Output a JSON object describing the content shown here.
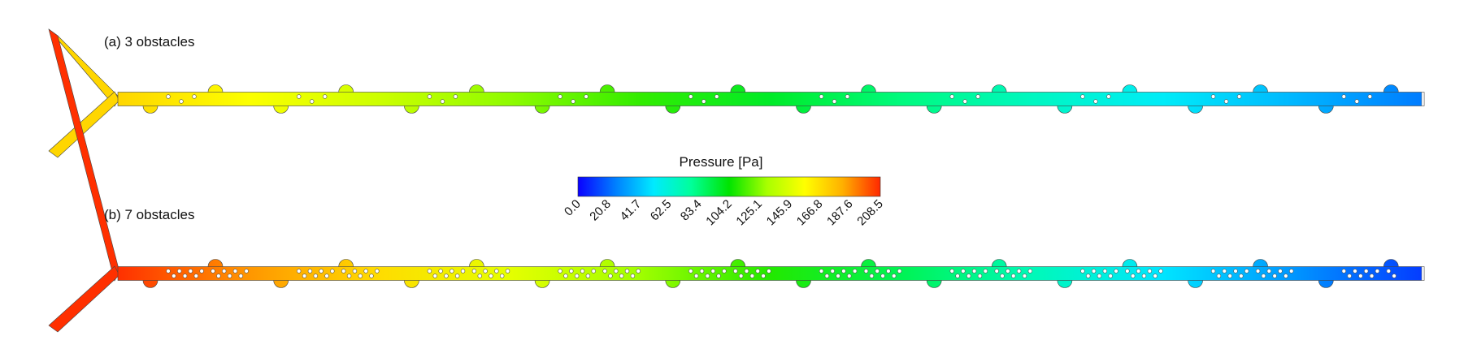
{
  "panels": [
    {
      "id": "a",
      "label": "(a) 3 obstacles",
      "obstacles_per_section": 3,
      "inlet_pressure": 170,
      "section_pressure_drop": 14.5
    },
    {
      "id": "b",
      "label": "(b) 7 obstacles",
      "obstacles_per_section": 7,
      "inlet_pressure": 207,
      "section_pressure_drop": 19.5
    }
  ],
  "legend": {
    "title": "Pressure [Pa]",
    "min": 0.0,
    "max": 208.5,
    "ticks": [
      "0.0",
      "20.8",
      "41.7",
      "62.5",
      "83.4",
      "104.2",
      "125.1",
      "145.9",
      "166.8",
      "187.6",
      "208.5"
    ]
  },
  "colormap": [
    "#0a00ff",
    "#0080ff",
    "#00eaff",
    "#00ff9a",
    "#00e400",
    "#a8ff00",
    "#ffff00",
    "#ffb000",
    "#ff2800"
  ]
}
